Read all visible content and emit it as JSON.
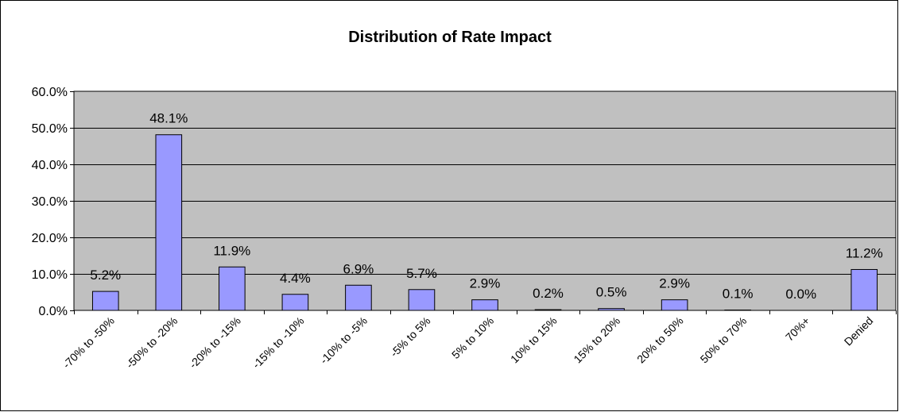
{
  "chart_data": {
    "type": "bar",
    "title": "Distribution of Rate Impact",
    "xlabel": "",
    "ylabel": "",
    "categories": [
      "-70% to -50%",
      "-50% to -20%",
      "-20% to -15%",
      "-15% to -10%",
      "-10% to -5%",
      "-5% to 5%",
      "5% to 10%",
      "10% to 15%",
      "15% to 20%",
      "20% to 50%",
      "50% to 70%",
      "70%+",
      "Denied"
    ],
    "values": [
      5.2,
      48.1,
      11.9,
      4.4,
      6.9,
      5.7,
      2.9,
      0.2,
      0.5,
      2.9,
      0.1,
      0.0,
      11.2
    ],
    "data_labels": [
      "5.2%",
      "48.1%",
      "11.9%",
      "4.4%",
      "6.9%",
      "5.7%",
      "2.9%",
      "0.2%",
      "0.5%",
      "2.9%",
      "0.1%",
      "0.0%",
      "11.2%"
    ],
    "ylim": [
      0,
      60
    ],
    "yticks": [
      0,
      10,
      20,
      30,
      40,
      50,
      60
    ],
    "ytick_labels": [
      "0.0%",
      "10.0%",
      "20.0%",
      "30.0%",
      "40.0%",
      "50.0%",
      "60.0%"
    ],
    "grid": true,
    "legend": "none",
    "colors": {
      "bar_fill": "#9999ff",
      "bar_stroke": "#000000",
      "plot_background": "#c0c0c0",
      "gridline": "#000000",
      "frame": "#000000"
    }
  }
}
